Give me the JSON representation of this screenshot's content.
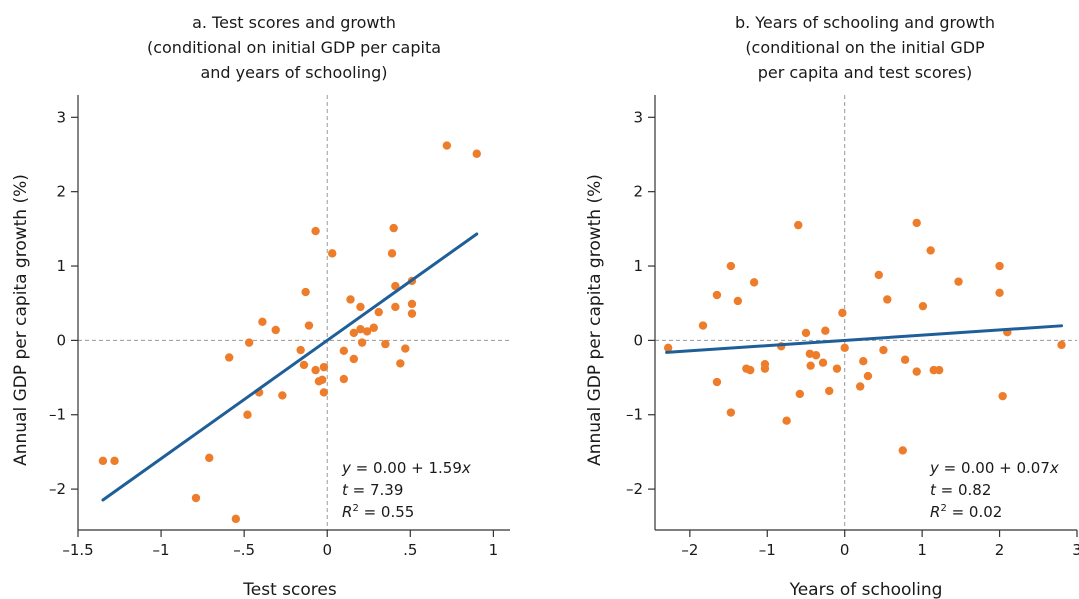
{
  "colors": {
    "points": "#ee7d2b",
    "fit_line": "#1f5f99",
    "axis": "#333333",
    "reference_line": "#9a9a9a"
  },
  "chart_data": [
    {
      "type": "scatter",
      "title_lines": [
        "a. Test scores and growth",
        "(conditional on initial GDP per capita",
        "and years of schooling)"
      ],
      "xlabel": "Test scores",
      "ylabel": "Annual GDP per capita growth (%)",
      "xlim": [
        -1.5,
        1.1
      ],
      "ylim": [
        -2.55,
        3.3
      ],
      "xticks": [
        -1.5,
        -1,
        -0.5,
        0,
        0.5,
        1
      ],
      "xtick_labels": [
        "–1.5",
        "–1",
        "–.5",
        "0",
        ".5",
        "1"
      ],
      "yticks": [
        -2,
        -1,
        0,
        1,
        2,
        3
      ],
      "ytick_labels": [
        "–2",
        "–1",
        "0",
        "1",
        "2",
        "3"
      ],
      "reference_lines": {
        "x": 0,
        "y": 0
      },
      "grid": false,
      "fit": {
        "intercept": 0.0,
        "slope": 1.59,
        "x_range": [
          -1.35,
          0.9
        ]
      },
      "annotation": {
        "equation_lead": "y",
        "equation_rest": " = 0.00 + 1.59",
        "equation_var": "x",
        "t_lead": "t",
        "t_rest": " = 7.39",
        "r2_lead": "R",
        "r2_sup": "2",
        "r2_rest": " = 0.55"
      },
      "points": [
        [
          -1.35,
          -1.62
        ],
        [
          -1.28,
          -1.62
        ],
        [
          -0.79,
          -2.12
        ],
        [
          -0.71,
          -1.58
        ],
        [
          -0.55,
          -2.4
        ],
        [
          -0.59,
          -0.23
        ],
        [
          -0.48,
          -1.0
        ],
        [
          -0.47,
          -0.03
        ],
        [
          -0.41,
          -0.7
        ],
        [
          -0.39,
          0.25
        ],
        [
          -0.31,
          0.14
        ],
        [
          -0.27,
          -0.74
        ],
        [
          -0.16,
          -0.13
        ],
        [
          -0.14,
          -0.33
        ],
        [
          -0.13,
          0.65
        ],
        [
          -0.11,
          0.2
        ],
        [
          -0.07,
          1.47
        ],
        [
          -0.07,
          -0.4
        ],
        [
          -0.05,
          -0.55
        ],
        [
          -0.03,
          -0.53
        ],
        [
          -0.02,
          -0.36
        ],
        [
          -0.02,
          -0.7
        ],
        [
          0.03,
          1.17
        ],
        [
          0.1,
          -0.14
        ],
        [
          0.1,
          -0.52
        ],
        [
          0.14,
          0.55
        ],
        [
          0.16,
          0.1
        ],
        [
          0.16,
          -0.25
        ],
        [
          0.2,
          0.45
        ],
        [
          0.2,
          0.15
        ],
        [
          0.21,
          -0.03
        ],
        [
          0.24,
          0.12
        ],
        [
          0.28,
          0.17
        ],
        [
          0.31,
          0.38
        ],
        [
          0.35,
          -0.05
        ],
        [
          0.4,
          1.51
        ],
        [
          0.39,
          1.17
        ],
        [
          0.41,
          0.73
        ],
        [
          0.41,
          0.45
        ],
        [
          0.44,
          -0.31
        ],
        [
          0.47,
          -0.11
        ],
        [
          0.51,
          0.8
        ],
        [
          0.51,
          0.49
        ],
        [
          0.51,
          0.36
        ],
        [
          0.72,
          2.62
        ],
        [
          0.9,
          2.51
        ]
      ]
    },
    {
      "type": "scatter",
      "title_lines": [
        "b. Years of schooling and growth",
        "(conditional on the initial GDP",
        "per capita and test scores)"
      ],
      "xlabel": "Years of schooling",
      "ylabel": "Annual GDP per capita growth (%)",
      "xlim": [
        -2.45,
        3.0
      ],
      "ylim": [
        -2.55,
        3.3
      ],
      "xticks": [
        -2,
        -1,
        0,
        1,
        2,
        3
      ],
      "xtick_labels": [
        "–2",
        "–1",
        "0",
        "1",
        "2",
        "3"
      ],
      "yticks": [
        -2,
        -1,
        0,
        1,
        2,
        3
      ],
      "ytick_labels": [
        "–2",
        "–1",
        "0",
        "1",
        "2",
        "3"
      ],
      "reference_lines": {
        "x": 0,
        "y": 0
      },
      "grid": false,
      "fit": {
        "intercept": 0.0,
        "slope": 0.07,
        "x_range": [
          -2.3,
          2.8
        ]
      },
      "annotation": {
        "equation_lead": "y",
        "equation_rest": " = 0.00 + 0.07",
        "equation_var": "x",
        "t_lead": "t",
        "t_rest": " = 0.82",
        "r2_lead": "R",
        "r2_sup": "2",
        "r2_rest": " = 0.02"
      },
      "points": [
        [
          -2.28,
          -0.1
        ],
        [
          -1.83,
          0.2
        ],
        [
          -1.65,
          0.61
        ],
        [
          -1.65,
          -0.56
        ],
        [
          -1.47,
          1.0
        ],
        [
          -1.47,
          -0.97
        ],
        [
          -1.38,
          0.53
        ],
        [
          -1.27,
          -0.38
        ],
        [
          -1.22,
          -0.4
        ],
        [
          -1.17,
          0.78
        ],
        [
          -1.03,
          -0.32
        ],
        [
          -1.03,
          -0.38
        ],
        [
          -0.82,
          -0.08
        ],
        [
          -0.75,
          -1.08
        ],
        [
          -0.6,
          1.55
        ],
        [
          -0.58,
          -0.72
        ],
        [
          -0.5,
          0.1
        ],
        [
          -0.45,
          -0.18
        ],
        [
          -0.44,
          -0.34
        ],
        [
          -0.37,
          -0.2
        ],
        [
          -0.28,
          -0.3
        ],
        [
          -0.25,
          0.13
        ],
        [
          -0.2,
          -0.68
        ],
        [
          -0.1,
          -0.38
        ],
        [
          -0.03,
          0.37
        ],
        [
          0.0,
          -0.1
        ],
        [
          0.2,
          -0.62
        ],
        [
          0.24,
          -0.28
        ],
        [
          0.3,
          -0.48
        ],
        [
          0.44,
          0.88
        ],
        [
          0.5,
          -0.13
        ],
        [
          0.55,
          0.55
        ],
        [
          0.75,
          -1.48
        ],
        [
          0.78,
          -0.26
        ],
        [
          0.93,
          1.58
        ],
        [
          0.93,
          -0.42
        ],
        [
          1.01,
          0.46
        ],
        [
          1.11,
          1.21
        ],
        [
          1.15,
          -0.4
        ],
        [
          1.22,
          -0.4
        ],
        [
          1.47,
          0.79
        ],
        [
          2.0,
          1.0
        ],
        [
          2.0,
          0.64
        ],
        [
          2.04,
          -0.75
        ],
        [
          2.1,
          0.11
        ],
        [
          2.8,
          -0.06
        ]
      ]
    }
  ]
}
